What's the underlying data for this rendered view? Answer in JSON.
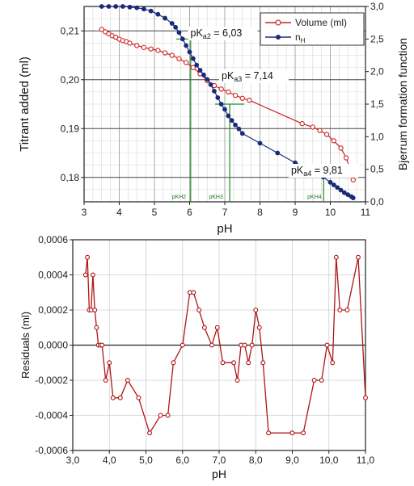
{
  "chart_data": [
    {
      "type": "line",
      "xlabel": "pH",
      "ylabel": "Titrant added (ml)",
      "y2label": "Bjerrum formation function",
      "xlim": [
        3,
        11
      ],
      "ylim": [
        0.175,
        0.215
      ],
      "y2lim": [
        0.0,
        3.0
      ],
      "x_ticks": [
        "3",
        "4",
        "5",
        "6",
        "7",
        "8",
        "9",
        "10",
        "11"
      ],
      "y_ticks": [
        "0,18",
        "0,19",
        "0,20",
        "0,21"
      ],
      "y2_ticks": [
        "0,0",
        "0,5",
        "1,0",
        "1,5",
        "2,0",
        "2,5",
        "3,0"
      ],
      "grid": true,
      "legend_position": "top-right",
      "series": [
        {
          "name": "Volume (ml)",
          "axis": "left",
          "color": "#cc2222",
          "marker": "open-circle",
          "x": [
            3.5,
            3.6,
            3.7,
            3.8,
            3.9,
            4.0,
            4.1,
            4.2,
            4.3,
            4.5,
            4.7,
            4.9,
            5.1,
            5.3,
            5.5,
            5.7,
            5.9,
            6.1,
            6.3,
            6.5,
            6.7,
            6.9,
            7.1,
            7.3,
            7.5,
            7.7,
            9.2,
            9.5,
            9.7,
            9.9,
            10.1,
            10.3,
            10.45,
            10.55,
            10.65
          ],
          "y": [
            0.2103,
            0.2098,
            0.2094,
            0.209,
            0.2087,
            0.2083,
            0.208,
            0.2078,
            0.2075,
            0.207,
            0.2066,
            0.2063,
            0.206,
            0.2055,
            0.205,
            0.2043,
            0.2035,
            0.2025,
            0.2012,
            0.1998,
            0.1988,
            0.1981,
            0.1975,
            0.1968,
            0.1962,
            0.1958,
            0.191,
            0.1903,
            0.1896,
            0.1888,
            0.1875,
            0.186,
            0.184,
            0.182,
            0.1795
          ]
        },
        {
          "name": "nH",
          "axis": "right",
          "color": "#1a2a7a",
          "marker": "filled-circle",
          "x": [
            3.5,
            3.7,
            3.9,
            4.1,
            4.3,
            4.5,
            4.7,
            4.9,
            5.1,
            5.3,
            5.5,
            5.6,
            5.7,
            5.8,
            5.9,
            6.0,
            6.1,
            6.2,
            6.3,
            6.4,
            6.5,
            6.6,
            6.7,
            6.8,
            6.9,
            7.0,
            7.1,
            7.2,
            7.3,
            7.4,
            7.5,
            8.0,
            8.5,
            9.0,
            9.4,
            9.6,
            9.8,
            10.0,
            10.1,
            10.2,
            10.3,
            10.4,
            10.5,
            10.6,
            10.65
          ],
          "y": [
            3.0,
            3.0,
            3.0,
            3.0,
            2.99,
            2.98,
            2.96,
            2.93,
            2.88,
            2.82,
            2.74,
            2.68,
            2.6,
            2.5,
            2.4,
            2.3,
            2.2,
            2.1,
            2.02,
            1.95,
            1.88,
            1.8,
            1.7,
            1.6,
            1.5,
            1.42,
            1.32,
            1.25,
            1.18,
            1.12,
            1.05,
            0.9,
            0.75,
            0.6,
            0.5,
            0.44,
            0.38,
            0.3,
            0.26,
            0.22,
            0.18,
            0.14,
            0.11,
            0.08,
            0.06
          ]
        }
      ],
      "annotations": [
        {
          "label": "pK",
          "sub": "a2",
          "value": " = 6,03",
          "x": 6.03
        },
        {
          "label": "pK",
          "sub": "a3",
          "value": " = 7,14",
          "x": 7.14
        },
        {
          "label": "pK",
          "sub": "a4",
          "value": " = 9,81",
          "x": 9.81
        }
      ],
      "mini_labels": [
        {
          "text": "pKH2",
          "x": 5.7
        },
        {
          "text": "pKH3",
          "x": 6.75
        },
        {
          "text": "pKH4",
          "x": 9.55
        }
      ]
    },
    {
      "type": "line",
      "xlabel": "pH",
      "ylabel": "Residuals (ml)",
      "xlim": [
        3.0,
        11.0
      ],
      "ylim": [
        -0.0006,
        0.0006
      ],
      "x_ticks": [
        "3,0",
        "4,0",
        "5,0",
        "6,0",
        "7,0",
        "8,0",
        "9,0",
        "10,0",
        "11,0"
      ],
      "y_ticks": [
        "-0,0006",
        "-0,0004",
        "-0,0002",
        "0,0000",
        "0,0002",
        "0,0004",
        "0,0006"
      ],
      "grid": true,
      "series": [
        {
          "name": "",
          "color": "#b01515",
          "marker": "open-circle",
          "x": [
            3.35,
            3.4,
            3.45,
            3.5,
            3.55,
            3.6,
            3.65,
            3.7,
            3.75,
            3.8,
            3.9,
            4.0,
            4.1,
            4.3,
            4.5,
            4.8,
            5.1,
            5.4,
            5.6,
            5.75,
            6.0,
            6.2,
            6.3,
            6.45,
            6.6,
            6.8,
            6.95,
            7.1,
            7.4,
            7.5,
            7.6,
            7.7,
            7.8,
            7.9,
            8.0,
            8.1,
            8.2,
            8.35,
            9.0,
            9.3,
            9.6,
            9.8,
            9.95,
            10.1,
            10.2,
            10.3,
            10.5,
            10.8,
            11.0
          ],
          "y": [
            0.0004,
            0.0005,
            0.0002,
            0.0002,
            0.0004,
            0.0002,
            0.0001,
            0.0,
            0.0,
            0.0,
            -0.0002,
            -0.0001,
            -0.0003,
            -0.0003,
            -0.0002,
            -0.0003,
            -0.0005,
            -0.0004,
            -0.0004,
            -0.0001,
            0.0,
            0.0003,
            0.0003,
            0.0002,
            0.0001,
            0.0,
            0.0001,
            -0.0001,
            -0.0001,
            -0.0002,
            0.0,
            0.0,
            -0.0001,
            0.0,
            0.0002,
            0.0001,
            -0.0001,
            -0.0005,
            -0.0005,
            -0.0005,
            -0.0002,
            -0.0002,
            0.0,
            -0.0001,
            0.0005,
            0.0002,
            0.0002,
            0.0005,
            -0.0003
          ]
        }
      ]
    }
  ]
}
